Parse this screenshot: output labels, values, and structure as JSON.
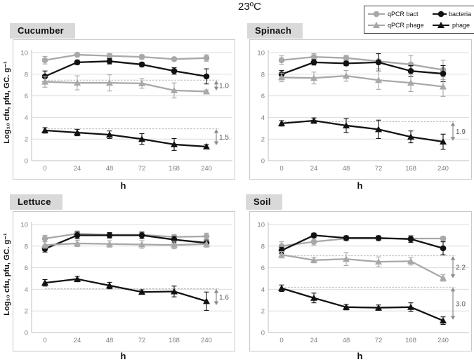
{
  "title": "23ºC",
  "ylabel": "Log₁₀ cfu, pfu, GC. g⁻¹",
  "xlabel": "h",
  "colors": {
    "gray_series": "#a8a8a8",
    "black_series": "#121212",
    "panel_title_bg": "#d9d9d9",
    "gridline": "#dcdcdc",
    "axis_line": "#bfbfbf",
    "tick_text": "#808080",
    "annotation": "#8c8c8c",
    "dashed_line": "#b3b3b3"
  },
  "legend": {
    "items": [
      {
        "label": "qPCR bact",
        "marker": "circle",
        "color": "#a8a8a8"
      },
      {
        "label": "bacteria",
        "marker": "circle",
        "color": "#121212"
      },
      {
        "label": "qPCR phage",
        "marker": "triangle",
        "color": "#a8a8a8"
      },
      {
        "label": "phage",
        "marker": "triangle",
        "color": "#121212"
      }
    ]
  },
  "chart_data": [
    {
      "panel": "Cucumber",
      "type": "line",
      "x": [
        0,
        24,
        48,
        72,
        168,
        240
      ],
      "xlabel": "h",
      "ylabel": "Log₁₀ cfu, pfu, GC. g⁻¹",
      "ylim": [
        0,
        10
      ],
      "yticks": [
        0,
        2,
        4,
        6,
        8,
        10
      ],
      "grid": true,
      "series": [
        {
          "name": "qPCR bact",
          "marker": "circle",
          "color": "#a8a8a8",
          "values": [
            9.3,
            9.8,
            9.7,
            9.6,
            9.4,
            9.5
          ],
          "err": [
            0.35,
            0.15,
            0.2,
            0.2,
            0.15,
            0.3
          ]
        },
        {
          "name": "bacteria",
          "marker": "circle",
          "color": "#121212",
          "values": [
            7.8,
            9.1,
            9.2,
            8.9,
            8.3,
            7.8
          ],
          "err": [
            0.5,
            0.2,
            0.25,
            0.2,
            0.3,
            0.7
          ]
        },
        {
          "name": "qPCR phage",
          "marker": "triangle",
          "color": "#a8a8a8",
          "values": [
            7.3,
            7.2,
            7.2,
            7.15,
            6.5,
            6.4
          ],
          "err": [
            0.5,
            0.65,
            0.75,
            0.45,
            0.7,
            0.15
          ]
        },
        {
          "name": "phage",
          "marker": "triangle",
          "color": "#121212",
          "values": [
            2.8,
            2.6,
            2.4,
            2.0,
            1.5,
            1.3
          ],
          "err": [
            0.25,
            0.3,
            0.35,
            0.5,
            0.55,
            0.2
          ]
        }
      ],
      "annotations": [
        {
          "dash_y": 7.45,
          "arrow_top": 7.45,
          "arrow_bottom": 6.45,
          "label": "1.0"
        },
        {
          "dash_y": 2.95,
          "arrow_top": 2.95,
          "arrow_bottom": 1.4,
          "label": "1.5"
        }
      ]
    },
    {
      "panel": "Spinach",
      "type": "line",
      "x": [
        0,
        24,
        48,
        72,
        168,
        240
      ],
      "xlabel": "h",
      "ylabel": "Log₁₀ cfu, pfu, GC. g⁻¹",
      "ylim": [
        0,
        10
      ],
      "yticks": [
        0,
        2,
        4,
        6,
        8,
        10
      ],
      "grid": true,
      "series": [
        {
          "name": "qPCR bact",
          "marker": "circle",
          "color": "#a8a8a8",
          "values": [
            9.3,
            9.6,
            9.5,
            9.2,
            8.9,
            8.4
          ],
          "err": [
            0.4,
            0.3,
            0.25,
            0.7,
            0.85,
            0.9
          ]
        },
        {
          "name": "bacteria",
          "marker": "circle",
          "color": "#121212",
          "values": [
            8.0,
            9.1,
            9.0,
            9.1,
            8.3,
            8.05
          ],
          "err": [
            0.35,
            0.25,
            0.2,
            0.8,
            0.5,
            0.75
          ]
        },
        {
          "name": "qPCR phage",
          "marker": "triangle",
          "color": "#a8a8a8",
          "values": [
            7.7,
            7.65,
            7.85,
            7.45,
            7.2,
            6.85
          ],
          "err": [
            0.4,
            0.55,
            0.5,
            0.85,
            0.8,
            0.9
          ]
        },
        {
          "name": "phage",
          "marker": "triangle",
          "color": "#121212",
          "values": [
            3.45,
            3.7,
            3.25,
            2.9,
            2.2,
            1.75
          ],
          "err": [
            0.25,
            0.25,
            0.65,
            0.85,
            0.55,
            0.7
          ]
        }
      ],
      "annotations": [
        {
          "dash_y": 3.6,
          "arrow_top": 3.6,
          "arrow_bottom": 1.8,
          "label": "1.9"
        }
      ]
    },
    {
      "panel": "Lettuce",
      "type": "line",
      "x": [
        0,
        24,
        48,
        72,
        168,
        240
      ],
      "xlabel": "h",
      "ylabel": "Log₁₀ cfu, pfu, GC. g⁻¹",
      "ylim": [
        0,
        10
      ],
      "yticks": [
        0,
        2,
        4,
        6,
        8,
        10
      ],
      "grid": true,
      "series": [
        {
          "name": "qPCR bact",
          "marker": "circle",
          "color": "#a8a8a8",
          "values": [
            8.7,
            9.15,
            9.05,
            9.05,
            8.85,
            8.9
          ],
          "err": [
            0.3,
            0.25,
            0.2,
            0.2,
            0.2,
            0.3
          ]
        },
        {
          "name": "bacteria",
          "marker": "circle",
          "color": "#121212",
          "values": [
            7.75,
            9.0,
            9.0,
            9.0,
            8.6,
            8.3
          ],
          "err": [
            0.3,
            0.3,
            0.25,
            0.3,
            0.3,
            0.25
          ]
        },
        {
          "name": "qPCR phage",
          "marker": "triangle",
          "color": "#a8a8a8",
          "values": [
            8.1,
            8.25,
            8.2,
            8.15,
            8.1,
            8.2
          ],
          "err": [
            0.3,
            0.3,
            0.3,
            0.35,
            0.35,
            0.3
          ]
        },
        {
          "name": "phage",
          "marker": "triangle",
          "color": "#121212",
          "values": [
            4.6,
            4.95,
            4.35,
            3.75,
            3.8,
            2.9
          ],
          "err": [
            0.3,
            0.25,
            0.3,
            0.2,
            0.5,
            0.85
          ]
        }
      ],
      "annotations": [
        {
          "dash_y": 4.05,
          "arrow_top": 4.05,
          "arrow_bottom": 2.5,
          "label": "1.6"
        }
      ]
    },
    {
      "panel": "Soil",
      "type": "line",
      "x": [
        0,
        24,
        48,
        72,
        168,
        240
      ],
      "xlabel": "h",
      "ylabel": "Log₁₀ cfu, pfu, GC. g⁻¹",
      "ylim": [
        0,
        10
      ],
      "yticks": [
        0,
        2,
        4,
        6,
        8,
        10
      ],
      "grid": true,
      "series": [
        {
          "name": "qPCR bact",
          "marker": "circle",
          "color": "#a8a8a8",
          "values": [
            8.0,
            8.4,
            8.7,
            8.7,
            8.7,
            8.7
          ],
          "err": [
            0.4,
            0.3,
            0.2,
            0.2,
            0.25,
            0.2
          ]
        },
        {
          "name": "bacteria",
          "marker": "circle",
          "color": "#121212",
          "values": [
            7.6,
            9.0,
            8.75,
            8.75,
            8.65,
            7.8
          ],
          "err": [
            0.3,
            0.2,
            0.2,
            0.2,
            0.3,
            0.6
          ]
        },
        {
          "name": "qPCR phage",
          "marker": "triangle",
          "color": "#a8a8a8",
          "values": [
            7.2,
            6.7,
            6.8,
            6.55,
            6.6,
            5.05
          ],
          "err": [
            0.3,
            0.25,
            0.6,
            0.45,
            0.35,
            0.3
          ]
        },
        {
          "name": "phage",
          "marker": "triangle",
          "color": "#121212",
          "values": [
            4.1,
            3.2,
            2.35,
            2.3,
            2.35,
            1.1
          ],
          "err": [
            0.3,
            0.45,
            0.25,
            0.25,
            0.4,
            0.35
          ]
        }
      ],
      "annotations": [
        {
          "dash_y": 7.1,
          "arrow_top": 7.1,
          "arrow_bottom": 5.0,
          "label": "2.2"
        },
        {
          "dash_y": 4.2,
          "arrow_top": 4.2,
          "arrow_bottom": 1.15,
          "label": "3.0"
        }
      ]
    }
  ]
}
